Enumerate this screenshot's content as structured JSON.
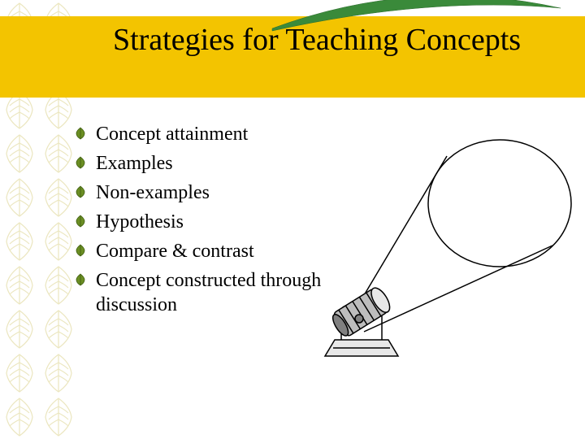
{
  "title": "Strategies for Teaching Concepts",
  "header_band_color": "#f3c400",
  "title_fontsize": 38,
  "title_color": "#000000",
  "bullet_fontsize": 24,
  "bullet_color": "#000000",
  "bullets": [
    "Concept attainment",
    "Examples",
    "Non-examples",
    "Hypothesis",
    "Compare & contrast",
    "Concept constructed through discussion"
  ],
  "swoosh_color": "#3a8a3a",
  "pattern_color": "#c7b84a",
  "spotlight": {
    "stroke": "#000000",
    "fill_light": "#e8e8e8",
    "fill_med": "#bdbdbd",
    "fill_dark": "#808080"
  }
}
